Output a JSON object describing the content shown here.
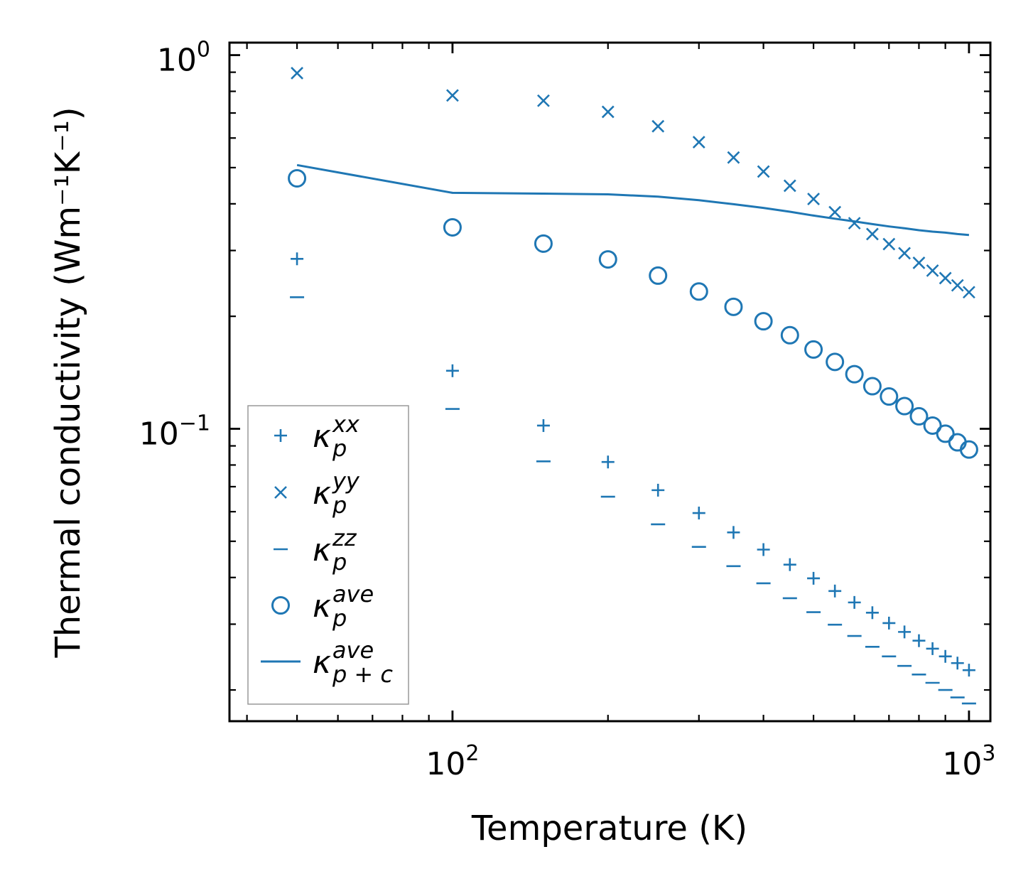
{
  "chart_data": {
    "type": "scatter",
    "xscale": "log",
    "yscale": "log",
    "xlabel": "Temperature (K)",
    "ylabel": "Thermal conductivity (Wm⁻¹K⁻¹)",
    "xlim": [
      37,
      1100
    ],
    "ylim": [
      0.0165,
      1.08
    ],
    "xticks": [
      {
        "value": 100,
        "base": "10",
        "exp": "2"
      },
      {
        "value": 1000,
        "base": "10",
        "exp": "3"
      }
    ],
    "yticks": [
      {
        "value": 0.1,
        "base": "10",
        "exp": "−1"
      },
      {
        "value": 1,
        "base": "10",
        "exp": "0"
      }
    ],
    "color": "#1f77b4",
    "x": [
      50,
      100,
      150,
      200,
      250,
      300,
      350,
      400,
      450,
      500,
      550,
      600,
      650,
      700,
      750,
      800,
      850,
      900,
      950,
      1000
    ],
    "series": [
      {
        "name": "kappa_p^xx",
        "marker": "plus",
        "values": [
          0.285,
          0.143,
          0.102,
          0.0815,
          0.0685,
          0.0595,
          0.0528,
          0.0475,
          0.0433,
          0.0398,
          0.0368,
          0.0343,
          0.0322,
          0.0302,
          0.0286,
          0.0271,
          0.0258,
          0.0246,
          0.0236,
          0.0226
        ]
      },
      {
        "name": "kappa_p^yy",
        "marker": "x",
        "values": [
          0.895,
          0.78,
          0.755,
          0.705,
          0.645,
          0.585,
          0.532,
          0.488,
          0.447,
          0.412,
          0.38,
          0.355,
          0.332,
          0.312,
          0.295,
          0.278,
          0.265,
          0.253,
          0.242,
          0.232
        ]
      },
      {
        "name": "kappa_p^zz",
        "marker": "hline",
        "values": [
          0.225,
          0.113,
          0.0818,
          0.0658,
          0.0555,
          0.0483,
          0.0429,
          0.0386,
          0.0352,
          0.0323,
          0.0299,
          0.0279,
          0.0261,
          0.0246,
          0.0232,
          0.022,
          0.0209,
          0.02,
          0.0191,
          0.0184
        ]
      },
      {
        "name": "kappa_p^ave",
        "marker": "circle",
        "values": [
          0.468,
          0.346,
          0.313,
          0.284,
          0.257,
          0.233,
          0.212,
          0.194,
          0.178,
          0.163,
          0.151,
          0.14,
          0.13,
          0.122,
          0.115,
          0.108,
          0.102,
          0.097,
          0.092,
          0.088
        ]
      },
      {
        "name": "kappa_{p+c}^ave",
        "marker": "line",
        "values": [
          0.508,
          0.428,
          0.426,
          0.424,
          0.418,
          0.409,
          0.399,
          0.39,
          0.381,
          0.372,
          0.365,
          0.359,
          0.353,
          0.348,
          0.344,
          0.34,
          0.337,
          0.335,
          0.332,
          0.33
        ]
      }
    ],
    "legend": {
      "location": "lower-left",
      "entries": [
        {
          "base": "κ",
          "sub": "p",
          "sup": "xx"
        },
        {
          "base": "κ",
          "sub": "p",
          "sup": "yy"
        },
        {
          "base": "κ",
          "sub": "p",
          "sup": "zz"
        },
        {
          "base": "κ",
          "sub": "p",
          "sup": "ave"
        },
        {
          "base": "κ",
          "sub": "p + c",
          "sup": "ave"
        }
      ]
    }
  }
}
